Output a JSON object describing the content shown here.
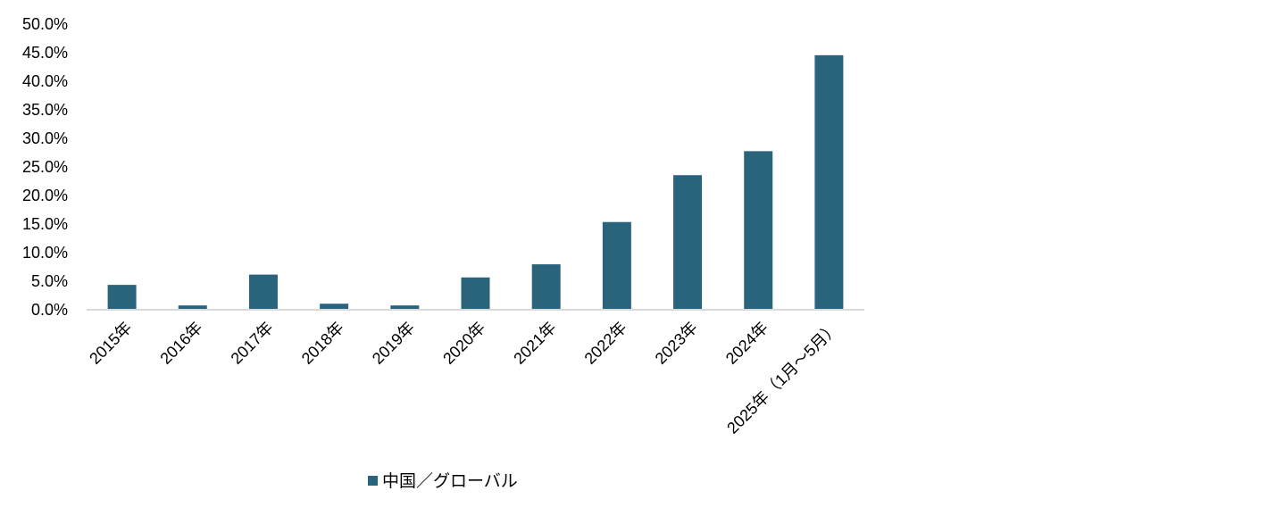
{
  "chart_data": {
    "type": "bar",
    "title": "",
    "xlabel": "",
    "ylabel": "",
    "categories": [
      "2015年",
      "2016年",
      "2017年",
      "2018年",
      "2019年",
      "2020年",
      "2021年",
      "2022年",
      "2023年",
      "2024年",
      "2025年（1月～5月）"
    ],
    "series": [
      {
        "name": "中国／グローバル",
        "values": [
          4.2,
          0.6,
          6.0,
          0.9,
          0.6,
          5.5,
          7.8,
          15.2,
          23.4,
          27.6,
          44.4
        ],
        "color": "#2a637c"
      }
    ],
    "ylim": [
      0,
      50
    ],
    "yticks": [
      "0.0%",
      "5.0%",
      "10.0%",
      "15.0%",
      "20.0%",
      "25.0%",
      "30.0%",
      "35.0%",
      "40.0%",
      "45.0%",
      "50.0%"
    ],
    "grid": false,
    "legend_position": "bottom",
    "axis_color": "#d9d9d9"
  }
}
